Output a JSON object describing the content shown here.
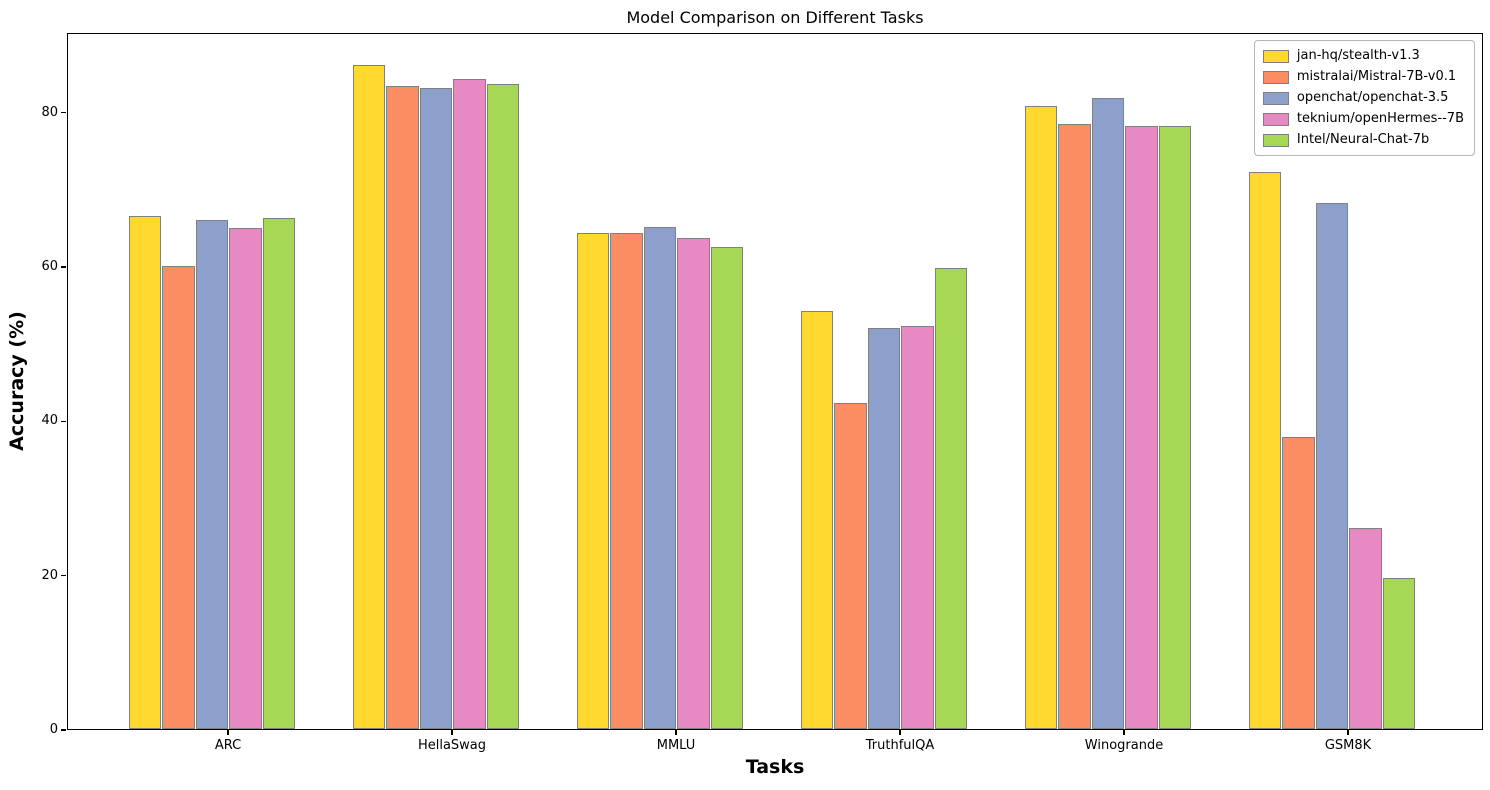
{
  "chart_data": {
    "type": "bar",
    "title": "Model Comparison on Different Tasks",
    "xlabel": "Tasks",
    "ylabel": "Accuracy (%)",
    "categories": [
      "ARC",
      "HellaSwag",
      "MMLU",
      "TruthfulQA",
      "Winogrande",
      "GSM8K"
    ],
    "series": [
      {
        "name": "jan-hq/stealth-v1.3",
        "color": "#FFD92F",
        "values": [
          66.4,
          86.0,
          64.2,
          54.2,
          80.7,
          72.2
        ]
      },
      {
        "name": "mistralai/Mistral-7B-v0.1",
        "color": "#FC8D62",
        "values": [
          60.0,
          83.3,
          64.2,
          42.2,
          78.4,
          37.8
        ]
      },
      {
        "name": "openchat/openchat-3.5",
        "color": "#8DA0CB",
        "values": [
          66.0,
          83.0,
          65.0,
          51.9,
          81.8,
          68.2
        ]
      },
      {
        "name": "teknium/openHermes--7B",
        "color": "#E78AC3",
        "values": [
          64.9,
          84.2,
          63.6,
          52.2,
          78.1,
          26.1
        ]
      },
      {
        "name": "Intel/Neural-Chat-7b",
        "color": "#A6D854",
        "values": [
          66.2,
          83.6,
          62.4,
          59.7,
          78.1,
          19.6
        ]
      }
    ],
    "ylim": [
      0,
      90.3
    ],
    "yticks": [
      0,
      20,
      40,
      60,
      80
    ],
    "grid": false,
    "legend_position": "upper right",
    "bar_edge_color": "#808080",
    "axes_color": "#000000",
    "background_color": "#ffffff"
  }
}
